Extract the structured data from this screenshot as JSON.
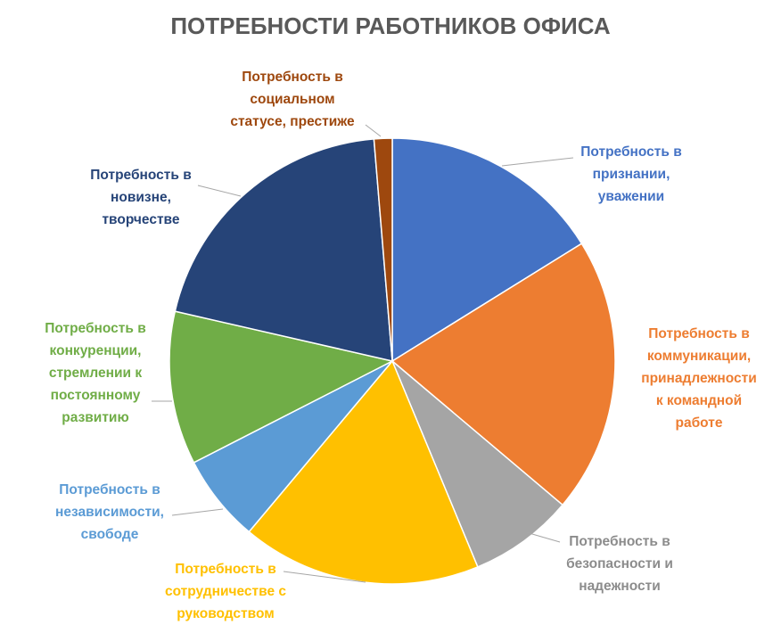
{
  "chart_data": {
    "type": "pie",
    "title": "ПОТРЕБНОСТИ РАБОТНИКОВ ОФИСА",
    "categories": [
      "Потребность в\nпризнании,\nуважении",
      "Потребность в\nкоммуникации,\nпринадлежности\nк командной\nработе",
      "Потребность в\nбезопасности и\nнадежности",
      "Потребность в\nсотрудничестве с\nруководством",
      "Потребность в\nнезависимости,\nсвободе",
      "Потребность в\nконкуренции,\nстремлении к\nпостоянному\nразвитию",
      "Потребность в\nновизне,\nтворчестве",
      "Потребность в\nсоциальном\nстатусе, престиже"
    ],
    "values": [
      16,
      19.8,
      7.5,
      17.2,
      6.3,
      11,
      19.9,
      1.3
    ],
    "colors": [
      "#4472c4",
      "#ed7d31",
      "#a5a5a5",
      "#ffc000",
      "#5b9bd5",
      "#70ad47",
      "#264478",
      "#9e480e"
    ]
  }
}
